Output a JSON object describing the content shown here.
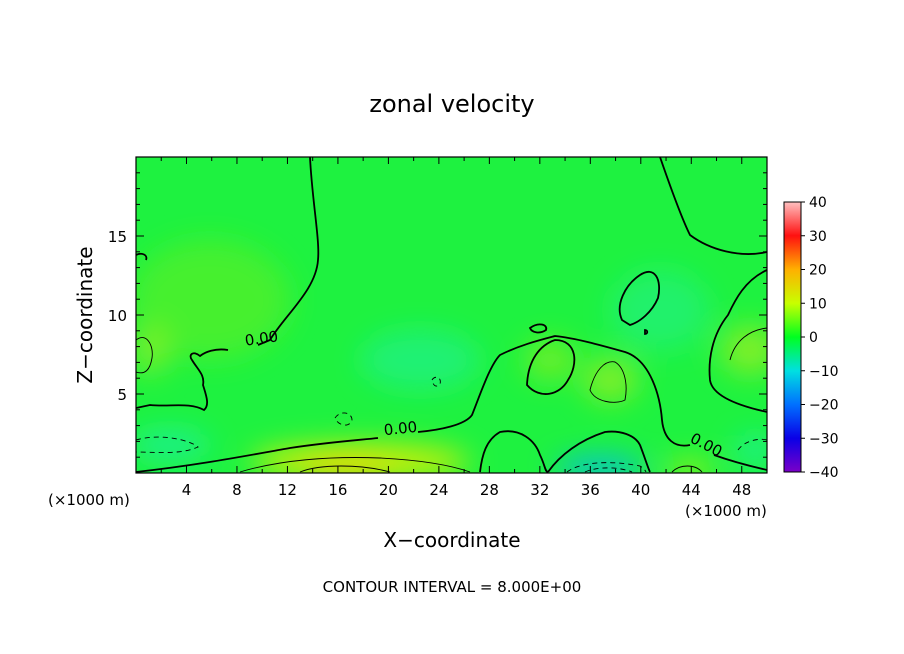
{
  "chart_data": {
    "type": "heatmap",
    "title": "zonal velocity",
    "xlabel": "X−coordinate",
    "ylabel": "Z−coordinate",
    "x_unit_left": "(×1000 m)",
    "x_unit_right": "(×1000 m)",
    "footer": "CONTOUR INTERVAL = 8.000E+00",
    "xlim": [
      0,
      50
    ],
    "ylim": [
      0,
      20
    ],
    "x_ticks": [
      4,
      8,
      12,
      16,
      20,
      24,
      28,
      32,
      36,
      40,
      44,
      48
    ],
    "y_ticks": [
      5,
      10,
      15
    ],
    "colorbar": {
      "min": -40,
      "max": 40,
      "ticks": [
        40,
        30,
        20,
        10,
        0,
        -10,
        -20,
        -30,
        -40
      ],
      "colors": [
        "#7a00c8",
        "#0a00e6",
        "#0070ff",
        "#00e0e0",
        "#00ff20",
        "#c8ff00",
        "#ffb000",
        "#ff1010",
        "#ffc0c0"
      ]
    },
    "contour_interval": 8.0,
    "contour_labels": [
      {
        "text": "0.00",
        "x": 10,
        "z": 8.2
      },
      {
        "text": "0.00",
        "x": 21,
        "z": 2.5
      },
      {
        "text": "0.00",
        "x": 45,
        "z": 1.5
      }
    ]
  }
}
